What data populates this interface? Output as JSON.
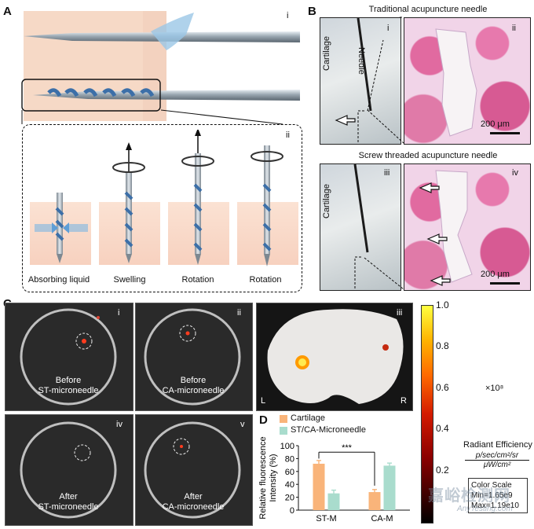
{
  "panelA": {
    "letter": "A",
    "roman_i": "i",
    "roman_ii": "ii",
    "steps": [
      "Absorbing liquid",
      "Swelling",
      "Rotation",
      "Rotation"
    ]
  },
  "panelB": {
    "letter": "B",
    "title_top": "Traditional acupuncture needle",
    "title_bottom": "Screw threaded acupuncture needle",
    "roman": [
      "i",
      "ii",
      "iii",
      "iv"
    ],
    "cartilage_label": "Cartilage",
    "needle_label": "Needle",
    "scale_bar": "200 μm"
  },
  "panelC": {
    "letter": "C",
    "images": [
      {
        "roman": "i",
        "line1": "Before",
        "line2": "ST-microneedle"
      },
      {
        "roman": "ii",
        "line1": "Before",
        "line2": "CA-microneedle"
      },
      {
        "roman": "iii",
        "left": "L",
        "right": "R"
      },
      {
        "roman": "iv",
        "line1": "After",
        "line2": "ST-microneedle"
      },
      {
        "roman": "v",
        "line1": "After",
        "line2": "CA-microneedle"
      }
    ]
  },
  "colorbar": {
    "ticks": [
      "1.0",
      "0.8",
      "0.6",
      "0.4",
      "0.2"
    ],
    "multiplier": "×10⁸",
    "title": "Radiant Efficiency",
    "unit_num": "p/sec/cm²/sr",
    "unit_den": "μW/cm²",
    "scale_title": "Color Scale",
    "min": "Min=1.65e9",
    "max": "Max=1.19e10"
  },
  "panelD": {
    "letter": "D",
    "legend": [
      "Cartilage",
      "ST/CA-Microneedle"
    ],
    "significance": "***"
  },
  "chart_data": {
    "type": "bar",
    "categories": [
      "ST-M",
      "CA-M"
    ],
    "series": [
      {
        "name": "Cartilage",
        "values": [
          72,
          28
        ],
        "errors": [
          5,
          4
        ],
        "color": "#f9b47a"
      },
      {
        "name": "ST/CA-Microneedle",
        "values": [
          26,
          69
        ],
        "errors": [
          5,
          4
        ],
        "color": "#a9dccd"
      }
    ],
    "ylabel_line1": "Relative fluorescence",
    "ylabel_line2": "Intensity (%)",
    "yticks": [
      "0",
      "20",
      "40",
      "60",
      "80",
      "100"
    ],
    "ylim": [
      0,
      100
    ]
  },
  "watermark": {
    "cn": "嘉峪检测网",
    "en": "AnyTesting.com"
  }
}
